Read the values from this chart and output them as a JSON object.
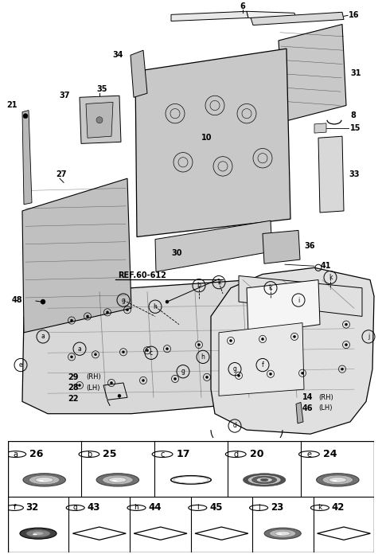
{
  "bg_color": "#ffffff",
  "legend_row1": [
    {
      "letter": "a",
      "num": "26",
      "shape": "grommet"
    },
    {
      "letter": "b",
      "num": "25",
      "shape": "grommet"
    },
    {
      "letter": "c",
      "num": "17",
      "shape": "oval"
    },
    {
      "letter": "d",
      "num": "20",
      "shape": "grommet_target"
    },
    {
      "letter": "e",
      "num": "24",
      "shape": "grommet"
    }
  ],
  "legend_row2": [
    {
      "letter": "f",
      "num": "32",
      "shape": "grommet_dark"
    },
    {
      "letter": "g",
      "num": "43",
      "shape": "diamond"
    },
    {
      "letter": "h",
      "num": "44",
      "shape": "diamond"
    },
    {
      "letter": "i",
      "num": "45",
      "shape": "diamond"
    },
    {
      "letter": "j",
      "num": "23",
      "shape": "grommet"
    },
    {
      "letter": "k",
      "num": "42",
      "shape": "diamond"
    }
  ]
}
